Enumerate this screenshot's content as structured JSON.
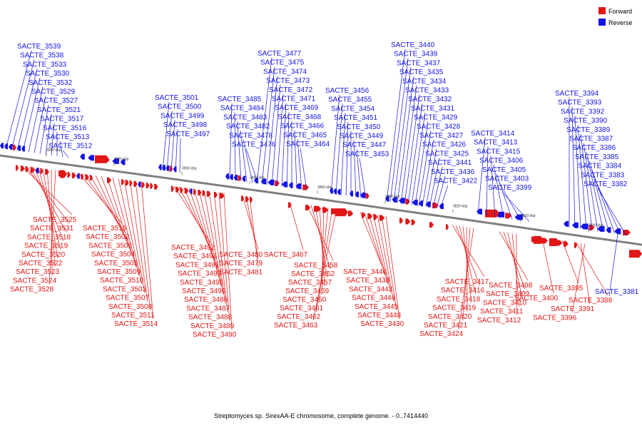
{
  "legend": {
    "forward_label": "Forward",
    "reverse_label": "Reverse",
    "forward_color": "#e11616",
    "reverse_color": "#1414e6"
  },
  "caption": "Streptomyces sp. SirexAA-E chromosome, complete genome. - 0..7414440",
  "ticks": [
    "3940 kbp",
    "3920 kbp",
    "3900 kbp",
    "3880 kbp",
    "3860 kbp",
    "3840 kbp",
    "3820 kbp",
    "3800 kbp",
    "3780 kbp"
  ],
  "reverse_genes": [
    "SACTE_3539",
    "SACTE_3538",
    "SACTE_3533",
    "SACTE_3530",
    "SACTE_3532",
    "SACTE_3529",
    "SACTE_3527",
    "SACTE_3521",
    "SACTE_3517",
    "SACTE_3516",
    "SACTE_3513",
    "SACTE_3512",
    "SACTE_3501",
    "SACTE_3500",
    "SACTE_3499",
    "SACTE_3498",
    "SACTE_3497",
    "SACTE_3485",
    "SACTE_3484",
    "SACTE_3483",
    "SACTE_3482",
    "SACTE_3478",
    "SACTE_3476",
    "SACTE_3477",
    "SACTE_3475",
    "SACTE_3474",
    "SACTE_3473",
    "SACTE_3472",
    "SACTE_3471",
    "SACTE_3469",
    "SACTE_3468",
    "SACTE_3466",
    "SACTE_3465",
    "SACTE_3464",
    "SACTE_3456",
    "SACTE_3455",
    "SACTE_3454",
    "SACTE_3451",
    "SACTE_3450",
    "SACTE_3449",
    "SACTE_3447",
    "SACTE_3453",
    "SACTE_3440",
    "SACTE_3439",
    "SACTE_3437",
    "SACTE_3435",
    "SACTE_3434",
    "SACTE_3433",
    "SACTE_3432",
    "SACTE_3431",
    "SACTE_3429",
    "SACTE_3428",
    "SACTE_3427",
    "SACTE_3426",
    "SACTE_3425",
    "SACTE_3441",
    "SACTE_3436",
    "SACTE_3422",
    "SACTE_3414",
    "SACTE_3413",
    "SACTE_3415",
    "SACTE_3406",
    "SACTE_3405",
    "SACTE_3403",
    "SACTE_3399",
    "SACTE_3394",
    "SACTE_3393",
    "SACTE_3392",
    "SACTE_3390",
    "SACTE_3389",
    "SACTE_3387",
    "SACTE_3386",
    "SACTE_3385",
    "SACTE_3384",
    "SACTE_3383",
    "SACTE_3382",
    "SACTE_3381"
  ],
  "forward_genes": [
    "SACTE_3525",
    "SACTE_3531",
    "SACTE_3518",
    "SACTE_3519",
    "SACTE_3520",
    "SACTE_3522",
    "SACTE_3523",
    "SACTE_3524",
    "SACTE_3528",
    "SACTE_3515",
    "SACTE_3502",
    "SACTE_3506",
    "SACTE_3504",
    "SACTE_3505",
    "SACTE_3509",
    "SACTE_3510",
    "SACTE_3503",
    "SACTE_3507",
    "SACTE_3508",
    "SACTE_3511",
    "SACTE_3514",
    "SACTE_3492",
    "SACTE_3494",
    "SACTE_3491",
    "SACTE_3493",
    "SACTE_3495",
    "SACTE_3496",
    "SACTE_3486",
    "SACTE_3487",
    "SACTE_3488",
    "SACTE_3489",
    "SACTE_3490",
    "SACTE_3480",
    "SACTE_3479",
    "SACTE_3481",
    "SACTE_3467",
    "SACTE_3458",
    "SACTE_3452",
    "SACTE_3457",
    "SACTE_3459",
    "SACTE_3460",
    "SACTE_3461",
    "SACTE_3462",
    "SACTE_3463",
    "SACTE_3446",
    "SACTE_3438",
    "SACTE_3443",
    "SACTE_3444",
    "SACTE_3445",
    "SACTE_3448",
    "SACTE_3430",
    "SACTE_3417",
    "SACTE_3416",
    "SACTE_3418",
    "SACTE_3419",
    "SACTE_3420",
    "SACTE_3421",
    "SACTE_3424",
    "SACTE_3408",
    "SACTE_3409",
    "SACTE_3410",
    "SACTE_3411",
    "SACTE_3412",
    "SACTE_3400",
    "SACTE_3395",
    "SACTE_3388",
    "SACTE_3391",
    "SACTE_3396"
  ]
}
